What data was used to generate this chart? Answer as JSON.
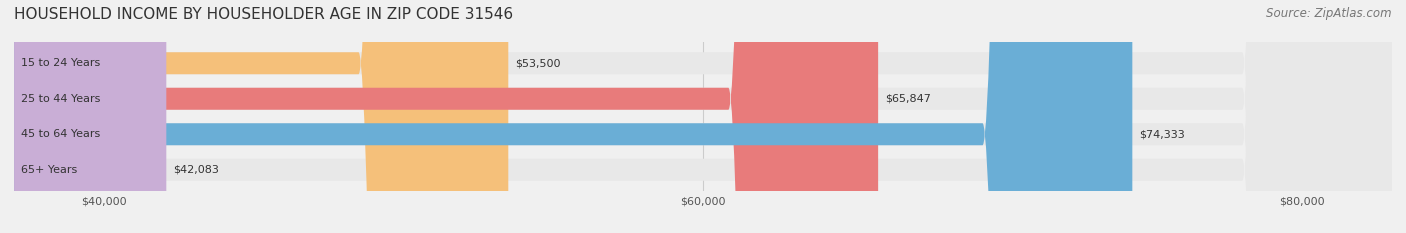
{
  "title": "HOUSEHOLD INCOME BY HOUSEHOLDER AGE IN ZIP CODE 31546",
  "source": "Source: ZipAtlas.com",
  "categories": [
    "15 to 24 Years",
    "25 to 44 Years",
    "45 to 64 Years",
    "65+ Years"
  ],
  "values": [
    53500,
    65847,
    74333,
    42083
  ],
  "bar_colors": [
    "#f5c07a",
    "#e87b7b",
    "#6aaed6",
    "#c9aed6"
  ],
  "bar_edge_colors": [
    "#e8a84a",
    "#d95f5f",
    "#4a90c4",
    "#a882c4"
  ],
  "label_colors": [
    "#7a5c1e",
    "#8b2020",
    "#1a4f7a",
    "#5a3a7a"
  ],
  "value_labels": [
    "$53,500",
    "$65,847",
    "$74,333",
    "$42,083"
  ],
  "xlim_min": 37000,
  "xlim_max": 83000,
  "xticks": [
    40000,
    60000,
    80000
  ],
  "xtick_labels": [
    "$40,000",
    "$60,000",
    "$80,000"
  ],
  "background_color": "#f0f0f0",
  "bar_bg_color": "#e8e8e8",
  "title_fontsize": 11,
  "source_fontsize": 8.5,
  "label_fontsize": 8,
  "value_fontsize": 8,
  "tick_fontsize": 8
}
